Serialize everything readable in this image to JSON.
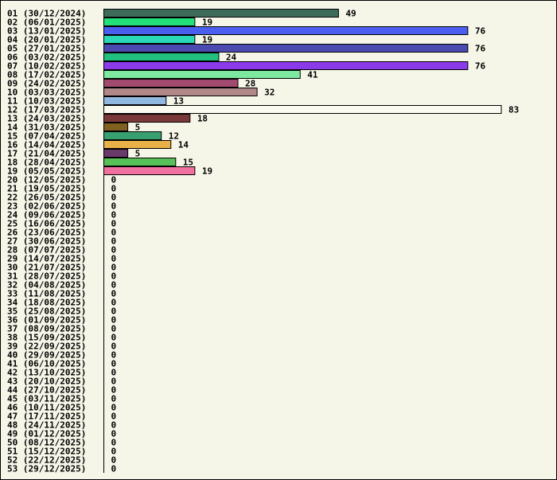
{
  "chart_data": {
    "type": "bar",
    "orientation": "horizontal",
    "grid": false,
    "categories": [
      "01 (30/12/2024)",
      "02 (06/01/2025)",
      "03 (13/01/2025)",
      "04 (20/01/2025)",
      "05 (27/01/2025)",
      "06 (03/02/2025)",
      "07 (10/02/2025)",
      "08 (17/02/2025)",
      "09 (24/02/2025)",
      "10 (03/03/2025)",
      "11 (10/03/2025)",
      "12 (17/03/2025)",
      "13 (24/03/2025)",
      "14 (31/03/2025)",
      "15 (07/04/2025)",
      "16 (14/04/2025)",
      "17 (21/04/2025)",
      "18 (28/04/2025)",
      "19 (05/05/2025)",
      "20 (12/05/2025)",
      "21 (19/05/2025)",
      "22 (26/05/2025)",
      "23 (02/06/2025)",
      "24 (09/06/2025)",
      "25 (16/06/2025)",
      "26 (23/06/2025)",
      "27 (30/06/2025)",
      "28 (07/07/2025)",
      "29 (14/07/2025)",
      "30 (21/07/2025)",
      "31 (28/07/2025)",
      "32 (04/08/2025)",
      "33 (11/08/2025)",
      "34 (18/08/2025)",
      "35 (25/08/2025)",
      "36 (01/09/2025)",
      "37 (08/09/2025)",
      "38 (15/09/2025)",
      "39 (22/09/2025)",
      "40 (29/09/2025)",
      "41 (06/10/2025)",
      "42 (13/10/2025)",
      "43 (20/10/2025)",
      "44 (27/10/2025)",
      "45 (03/11/2025)",
      "46 (10/11/2025)",
      "47 (17/11/2025)",
      "48 (24/11/2025)",
      "49 (01/12/2025)",
      "50 (08/12/2025)",
      "51 (15/12/2025)",
      "52 (22/12/2025)",
      "53 (29/12/2025)"
    ],
    "values": [
      49,
      19,
      76,
      19,
      76,
      24,
      76,
      41,
      28,
      32,
      13,
      83,
      18,
      5,
      12,
      14,
      5,
      15,
      19,
      0,
      0,
      0,
      0,
      0,
      0,
      0,
      0,
      0,
      0,
      0,
      0,
      0,
      0,
      0,
      0,
      0,
      0,
      0,
      0,
      0,
      0,
      0,
      0,
      0,
      0,
      0,
      0,
      0,
      0,
      0,
      0,
      0,
      0
    ],
    "colors": [
      "#3e6b5a",
      "#22e07a",
      "#4a5ef0",
      "#2ad8b8",
      "#4a4ab0",
      "#22c080",
      "#8a3ae8",
      "#7de8a0",
      "#a04a70",
      "#b08888",
      "#90b8e0",
      "#fafaf0",
      "#7a3838",
      "#806020",
      "#38a070",
      "#e8b048",
      "#6a3a6a",
      "#58c058",
      "#f070a0"
    ],
    "xlim": [
      0,
      83
    ]
  }
}
